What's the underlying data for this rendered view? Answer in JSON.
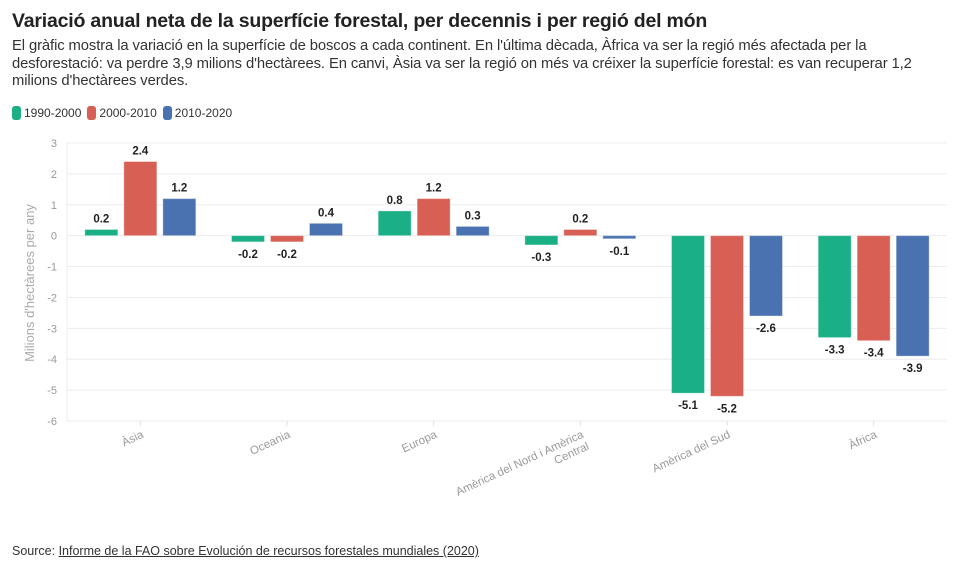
{
  "header": {
    "title": "Variació anual neta de la superfície forestal, per decennis i per regió del món",
    "subtitle": "El gràfic mostra la variació en la superfície de boscos a cada continent. En l'última dècada, Àfrica va ser la regió més afectada per la desforestació: va perdre 3,9 milions d'hectàrees. En canvi, Àsia va ser la regió on més va créixer la superfície forestal: es van recuperar 1,2 milions d'hectàrees verdes."
  },
  "legend": [
    {
      "label": "1990-2000",
      "color": "#1aaf85"
    },
    {
      "label": "2000-2010",
      "color": "#d75f54"
    },
    {
      "label": "2010-2020",
      "color": "#4a72b0"
    }
  ],
  "footer": {
    "source_prefix": "Source: ",
    "source_link": "Informe de la FAO sobre Evolución de recursos forestales mundiales (2020)"
  },
  "chart_data": {
    "type": "bar",
    "title": "",
    "xlabel": "",
    "ylabel": "Milions d'hectàrees per any",
    "ylim": [
      -6,
      3
    ],
    "yticks": [
      3,
      2,
      1,
      0,
      -1,
      -2,
      -3,
      -4,
      -5,
      -6
    ],
    "grid": true,
    "legend_position": "top-left",
    "categories": [
      "Àsia",
      "Oceania",
      "Europa",
      "Amèrica del Nord i Amèrica Central",
      "Amèrica del Sud",
      "Àfrica"
    ],
    "category_label_lines": [
      [
        "Àsia"
      ],
      [
        "Oceania"
      ],
      [
        "Europa"
      ],
      [
        "Amèrica del Nord i Amèrica",
        "Central"
      ],
      [
        "Amèrica del Sud"
      ],
      [
        "Àfrica"
      ]
    ],
    "series": [
      {
        "name": "1990-2000",
        "color": "#1aaf85",
        "values": [
          0.2,
          -0.2,
          0.8,
          -0.3,
          -5.1,
          -3.3
        ]
      },
      {
        "name": "2000-2010",
        "color": "#d75f54",
        "values": [
          2.4,
          -0.2,
          1.2,
          0.2,
          -5.2,
          -3.4
        ]
      },
      {
        "name": "2010-2020",
        "color": "#4a72b0",
        "values": [
          1.2,
          0.4,
          0.3,
          -0.1,
          -2.6,
          -3.9
        ]
      }
    ]
  }
}
